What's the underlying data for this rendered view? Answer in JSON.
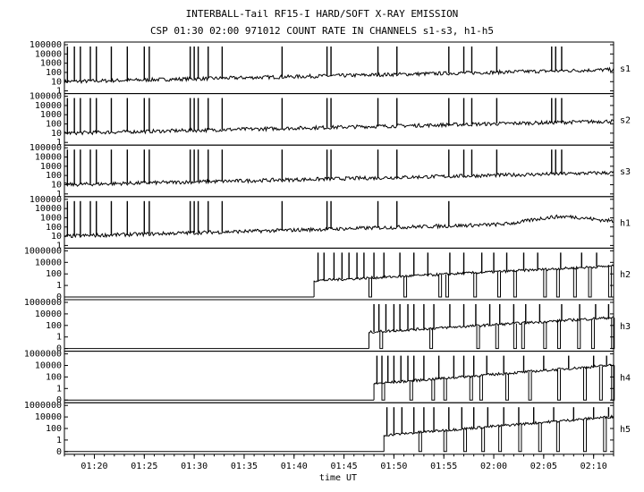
{
  "header": {
    "title": "INTERBALL-Tail RF15-I HARD/SOFT X-RAY EMISSION",
    "subtitle": "CSP 01:30 02:00 971012  COUNT RATE IN CHANNELS s1-s3, h1-h5"
  },
  "chart_data": {
    "type": "line",
    "xlabel": "time UT",
    "x_range": [
      "01:17",
      "02:12"
    ],
    "x_ticks": [
      "01:20",
      "01:25",
      "01:30",
      "01:35",
      "01:40",
      "01:45",
      "01:50",
      "01:55",
      "02:00",
      "02:05",
      "02:10"
    ],
    "y_scale": "log",
    "grid": false,
    "legend": "panel labels at right",
    "panels": [
      {
        "name": "s1",
        "y_ticks": [
          "100000",
          "10000",
          "1000",
          "100",
          "10",
          "1"
        ],
        "ylim": [
          1,
          100000
        ],
        "data_start": "01:17",
        "base_start": 10,
        "base_end": 200,
        "bump": [],
        "spike_times": [
          "01:17.3",
          "01:18",
          "01:18.6",
          "01:19.6",
          "01:20.2",
          "01:21.7",
          "01:23.3",
          "01:25",
          "01:25.5",
          "01:29.6",
          "01:30",
          "01:30.4",
          "01:31.4",
          "01:32.8",
          "01:38.8",
          "01:43.3",
          "01:43.7",
          "01:48.4",
          "01:50.3",
          "01:55.5",
          "01:57",
          "01:57.8",
          "02:00.3",
          "02:05.8",
          "02:06.2",
          "02:06.8"
        ]
      },
      {
        "name": "s2",
        "y_ticks": [
          "100000",
          "10000",
          "1000",
          "100",
          "10",
          "1"
        ],
        "ylim": [
          1,
          100000
        ],
        "data_start": "01:17",
        "base_start": 10,
        "base_end": 200,
        "bump": [],
        "spike_times": [
          "01:17.3",
          "01:18",
          "01:18.6",
          "01:19.6",
          "01:20.2",
          "01:21.7",
          "01:23.3",
          "01:25",
          "01:25.5",
          "01:29.6",
          "01:30",
          "01:30.4",
          "01:31.4",
          "01:32.8",
          "01:38.8",
          "01:43.3",
          "01:43.7",
          "01:48.4",
          "01:50.3",
          "01:55.5",
          "01:57",
          "01:57.8",
          "02:00.3",
          "02:05.8",
          "02:06.2",
          "02:06.8"
        ]
      },
      {
        "name": "s3",
        "y_ticks": [
          "100000",
          "10000",
          "1000",
          "100",
          "10",
          "1"
        ],
        "ylim": [
          1,
          100000
        ],
        "data_start": "01:17",
        "base_start": 10,
        "base_end": 200,
        "bump": [],
        "spike_times": [
          "01:17.3",
          "01:18",
          "01:18.6",
          "01:19.6",
          "01:20.2",
          "01:21.7",
          "01:23.3",
          "01:25",
          "01:25.5",
          "01:29.6",
          "01:30",
          "01:30.4",
          "01:31.4",
          "01:32.8",
          "01:38.8",
          "01:43.3",
          "01:43.7",
          "01:48.4",
          "01:50.3",
          "01:55.5",
          "01:57",
          "01:57.8",
          "02:00.3",
          "02:05.8",
          "02:06.2",
          "02:06.8"
        ]
      },
      {
        "name": "h1",
        "y_ticks": [
          "100000",
          "10000",
          "1000",
          "100",
          "10",
          "1"
        ],
        "ylim": [
          1,
          100000
        ],
        "data_start": "01:17",
        "base_start": 10,
        "base_end": 400,
        "bump": [
          "02:07",
          2000
        ],
        "spike_times": [
          "01:17.3",
          "01:18",
          "01:18.6",
          "01:19.6",
          "01:20.2",
          "01:21.7",
          "01:23.3",
          "01:25",
          "01:25.5",
          "01:29.6",
          "01:30",
          "01:30.4",
          "01:31.4",
          "01:32.8",
          "01:38.8",
          "01:43.3",
          "01:43.7",
          "01:48.4",
          "01:50.3",
          "01:55.5"
        ]
      },
      {
        "name": "h2",
        "y_ticks": [
          "1000000",
          "10000",
          "100",
          "1",
          "0"
        ],
        "ylim": [
          0.1,
          1000000
        ],
        "data_start": "01:42",
        "base_start": 30,
        "base_end": 5000,
        "bump": [],
        "spike_times": [
          "01:42.4",
          "01:43",
          "01:44",
          "01:44.8",
          "01:45.5",
          "01:46.3",
          "01:47",
          "01:48",
          "01:49",
          "01:50.6",
          "01:52",
          "01:53.4",
          "01:55.6",
          "01:57",
          "01:58.8",
          "02:00",
          "02:01.3",
          "02:03",
          "02:04.4",
          "02:06.7",
          "02:08.8",
          "02:10.3"
        ],
        "dip_times": [
          "01:47.5",
          "01:51",
          "01:54.5",
          "01:55.2",
          "01:58",
          "02:00.4",
          "02:02",
          "02:05",
          "02:06.3",
          "02:08",
          "02:09.5",
          "02:11.5"
        ]
      },
      {
        "name": "h3",
        "y_ticks": [
          "1000000",
          "10000",
          "100",
          "1",
          "0"
        ],
        "ylim": [
          0.1,
          1000000
        ],
        "data_start": "01:47.5",
        "base_start": 30,
        "base_end": 5000,
        "bump": [],
        "spike_times": [
          "01:48",
          "01:48.5",
          "01:49.2",
          "01:50",
          "01:50.6",
          "01:51.4",
          "01:52",
          "01:53",
          "01:54",
          "01:55.6",
          "01:57",
          "01:58.2",
          "01:59.6",
          "02:00.6",
          "02:02",
          "02:03.2",
          "02:04.6",
          "02:06.8",
          "02:08.6",
          "02:10.2",
          "02:11.5"
        ],
        "dip_times": [
          "01:48.6",
          "01:53.6",
          "01:58.3",
          "02:00.2",
          "02:02",
          "02:02.8",
          "02:05",
          "02:06.4",
          "02:08.4",
          "02:09.8",
          "02:11.8"
        ]
      },
      {
        "name": "h4",
        "y_ticks": [
          "1000000",
          "10000",
          "100",
          "1",
          "0"
        ],
        "ylim": [
          0.1,
          1000000
        ],
        "data_start": "01:48",
        "base_start": 30,
        "base_end": 20000,
        "bump": [],
        "spike_times": [
          "01:48.3",
          "01:48.8",
          "01:49.4",
          "01:50",
          "01:50.7",
          "01:51.4",
          "01:52",
          "01:53",
          "01:54.5",
          "01:56",
          "01:57",
          "01:58",
          "01:59.3",
          "02:01",
          "02:03",
          "02:05",
          "02:07.5",
          "02:10",
          "02:11.3"
        ],
        "dip_times": [
          "01:48.8",
          "01:51.6",
          "01:53.8",
          "01:55",
          "01:57.6",
          "01:58.6",
          "02:01.2",
          "02:03.5",
          "02:06.4",
          "02:09",
          "02:10.6",
          "02:11.8"
        ]
      },
      {
        "name": "h5",
        "y_ticks": [
          "1000000",
          "10000",
          "100",
          "1",
          "0"
        ],
        "ylim": [
          0.1,
          1000000
        ],
        "data_start": "01:49",
        "base_start": 30,
        "base_end": 20000,
        "bump": [],
        "spike_times": [
          "01:49.3",
          "01:50",
          "01:50.8",
          "01:52",
          "01:53",
          "01:54",
          "01:55.5",
          "01:56.8",
          "01:58",
          "01:59.4",
          "02:01",
          "02:02.5",
          "02:04",
          "02:06",
          "02:08",
          "02:10",
          "02:11.5"
        ],
        "dip_times": [
          "01:52.5",
          "01:55",
          "01:57",
          "01:58.8",
          "02:00.5",
          "02:02.5",
          "02:04.5",
          "02:06.3",
          "02:09",
          "02:11"
        ]
      }
    ]
  }
}
